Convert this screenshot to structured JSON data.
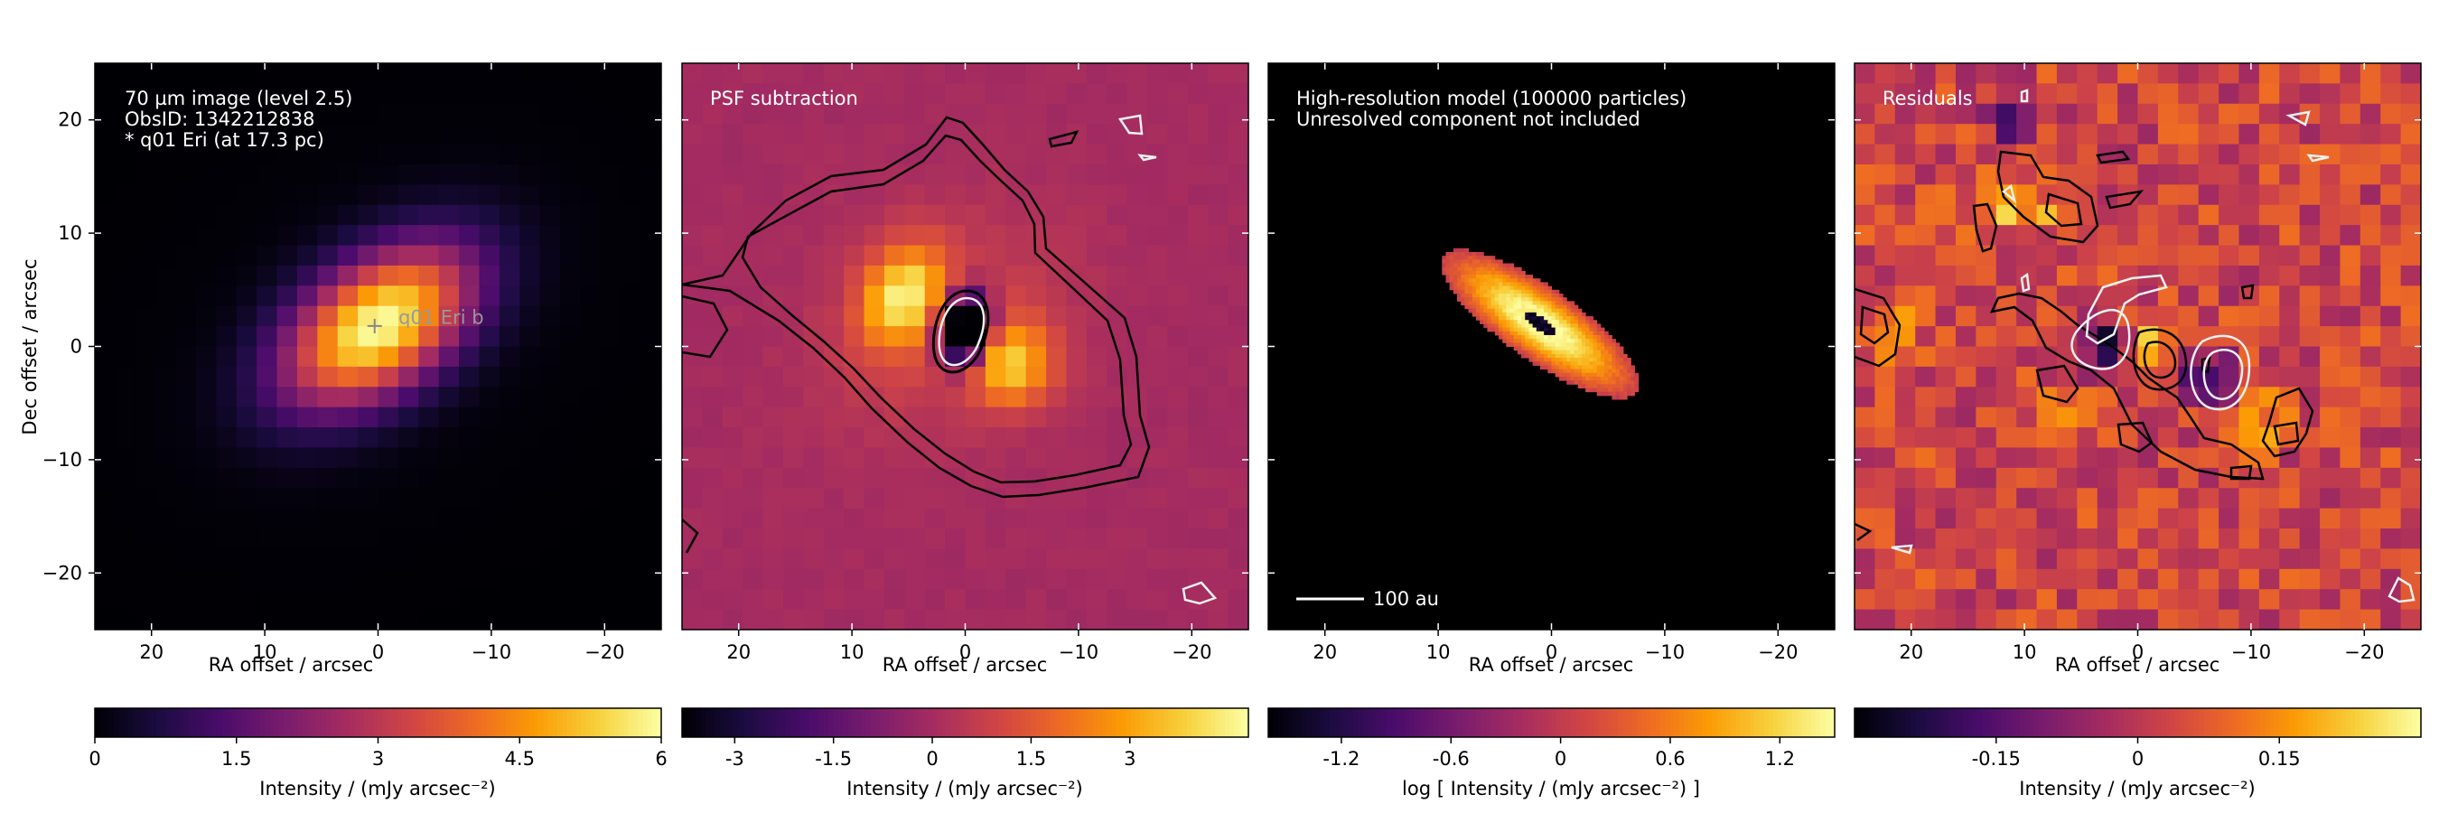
{
  "colormap": [
    "#000004",
    "#1b0c41",
    "#4a0c6b",
    "#781c6d",
    "#a52c60",
    "#cf4446",
    "#ed6925",
    "#fb9b06",
    "#f7d13d",
    "#fcffa4"
  ],
  "contour_colors": {
    "positive": "#000000",
    "negative": "#f0f0f0"
  },
  "x_axis_label": "RA offset / arcsec",
  "y_axis_label": "Dec offset / arcsec",
  "panels": [
    {
      "annotation": [
        "70 µm image (level 2.5)",
        "ObsID: 1342212838",
        "* q01 Eri (at 17.3 pc)"
      ],
      "marker_label": "q01 Eri b",
      "colorbar": {
        "label": "Intensity / (mJy arcsec⁻²)",
        "ticks": [
          "0",
          "1.5",
          "3",
          "4.5",
          "6"
        ],
        "range": [
          0,
          6
        ]
      }
    },
    {
      "annotation": [
        "PSF subtraction"
      ],
      "colorbar": {
        "label": "Intensity / (mJy arcsec⁻²)",
        "ticks": [
          "-3",
          "-1.5",
          "0",
          "1.5",
          "3"
        ],
        "range": [
          -3.8,
          4.8
        ]
      }
    },
    {
      "annotation": [
        "High-resolution model (100000 particles)",
        "Unresolved component not included"
      ],
      "scalebar_label": "100 au",
      "colorbar": {
        "label": "log [ Intensity / (mJy arcsec⁻²) ]",
        "ticks": [
          "-1.2",
          "-0.6",
          "0",
          "0.6",
          "1.2"
        ],
        "range": [
          -1.6,
          1.5
        ]
      }
    },
    {
      "annotation": [
        "Residuals"
      ],
      "colorbar": {
        "label": "Intensity / (mJy arcsec⁻²)",
        "ticks": [
          "-0.15",
          "0",
          "0.15"
        ],
        "range": [
          -0.3,
          0.3
        ]
      }
    }
  ],
  "chart_data": [
    {
      "type": "heatmap",
      "title": "70 µm image (level 2.5)",
      "xlabel": "RA offset / arcsec",
      "ylabel": "Dec offset / arcsec",
      "xlim": [
        25,
        -25
      ],
      "ylim": [
        -25,
        25
      ],
      "x_ticks": [
        20,
        10,
        0,
        -10,
        -20
      ],
      "y_ticks": [
        -20,
        -10,
        0,
        10,
        20
      ],
      "peak": {
        "x": 0,
        "y": 2,
        "value": 6
      },
      "markers": [
        {
          "x": 0,
          "y": 1.8,
          "label": "q01 Eri b"
        }
      ]
    },
    {
      "type": "heatmap",
      "title": "PSF subtraction",
      "xlabel": "RA offset / arcsec",
      "xlim": [
        25,
        -25
      ],
      "ylim": [
        -25,
        25
      ],
      "x_ticks": [
        20,
        10,
        0,
        -10,
        -20
      ],
      "clumps": [
        {
          "x": 5.5,
          "y": 4.5,
          "value": 3.8
        },
        {
          "x": -4,
          "y": -1.5,
          "value": 3.4
        }
      ],
      "hole": {
        "x": 0,
        "y": 1.5,
        "value": -3.8
      }
    },
    {
      "type": "heatmap",
      "title": "High-resolution model (100000 particles)",
      "xlabel": "RA offset / arcsec",
      "xlim": [
        25,
        -25
      ],
      "ylim": [
        -25,
        25
      ],
      "x_ticks": [
        20,
        10,
        0,
        -10,
        -20
      ],
      "disk": {
        "center": [
          1,
          2
        ],
        "semi_major": 10.5,
        "semi_minor": 3.2,
        "position_angle_deg": 55
      }
    },
    {
      "type": "heatmap",
      "title": "Residuals",
      "xlabel": "RA offset / arcsec",
      "xlim": [
        25,
        -25
      ],
      "ylim": [
        -25,
        25
      ],
      "x_ticks": [
        20,
        10,
        0,
        -10,
        -20
      ],
      "range": [
        -0.3,
        0.3
      ]
    }
  ]
}
